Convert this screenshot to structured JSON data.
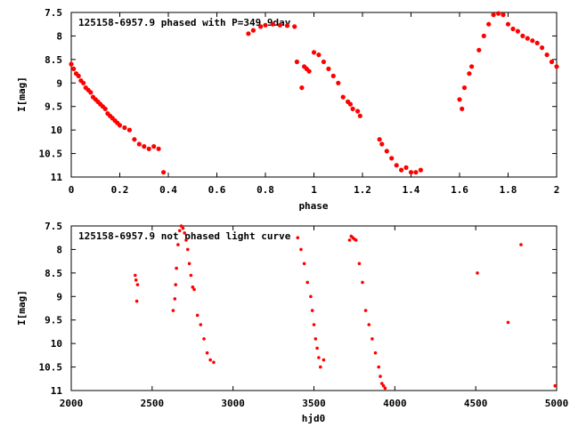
{
  "chart_data": [
    {
      "type": "scatter",
      "title": "125158-6957.9 phased with P=349.9day",
      "xlabel": "phase",
      "ylabel": "I[mag]",
      "xlim": [
        0,
        2
      ],
      "ylim": [
        7.5,
        11
      ],
      "y_inverted": true,
      "xticks": [
        "0",
        "0.2",
        "0.4",
        "0.6",
        "0.8",
        "1",
        "1.2",
        "1.4",
        "1.6",
        "1.8",
        "2"
      ],
      "yticks": [
        "7.5",
        "8",
        "8.5",
        "9",
        "9.5",
        "10",
        "10.5",
        "11"
      ],
      "point_color": "#ff0000",
      "series": [
        {
          "x": [
            0.0,
            0.01,
            0.02,
            0.03,
            0.04,
            0.05,
            0.06,
            0.07,
            0.08,
            0.09,
            0.1,
            0.11,
            0.12,
            0.13,
            0.14,
            0.15,
            0.16,
            0.17,
            0.18,
            0.19,
            0.2,
            0.22,
            0.24,
            0.26,
            0.28,
            0.3,
            0.32,
            0.34,
            0.36,
            0.38,
            0.73,
            0.75,
            0.78,
            0.8,
            0.83,
            0.86,
            0.89,
            0.92,
            0.93,
            0.95,
            0.96,
            0.97,
            0.98,
            1.0,
            1.02,
            1.04,
            1.06,
            1.08,
            1.1,
            1.12,
            1.14,
            1.15,
            1.16,
            1.18,
            1.19,
            1.27,
            1.28,
            1.3,
            1.32,
            1.34,
            1.36,
            1.38,
            1.4,
            1.42,
            1.44,
            1.6,
            1.61,
            1.62,
            1.64,
            1.65,
            1.68,
            1.7,
            1.72,
            1.74,
            1.76,
            1.78,
            1.8,
            1.82,
            1.84,
            1.86,
            1.88,
            1.9,
            1.92,
            1.94,
            1.96,
            1.98,
            2.0
          ],
          "y": [
            8.6,
            8.7,
            8.8,
            8.85,
            8.95,
            9.0,
            9.1,
            9.15,
            9.2,
            9.3,
            9.35,
            9.4,
            9.45,
            9.5,
            9.55,
            9.65,
            9.7,
            9.75,
            9.8,
            9.85,
            9.9,
            9.95,
            10.0,
            10.2,
            10.3,
            10.35,
            10.4,
            10.35,
            10.4,
            10.9,
            7.95,
            7.88,
            7.8,
            7.77,
            7.75,
            7.77,
            7.78,
            7.8,
            8.55,
            9.1,
            8.65,
            8.7,
            8.75,
            8.35,
            8.4,
            8.55,
            8.7,
            8.85,
            9.0,
            9.3,
            9.4,
            9.45,
            9.55,
            9.6,
            9.7,
            10.2,
            10.3,
            10.45,
            10.6,
            10.75,
            10.85,
            10.8,
            10.9,
            10.9,
            10.85,
            9.35,
            9.55,
            9.1,
            8.8,
            8.65,
            8.3,
            8.0,
            7.75,
            7.55,
            7.52,
            7.55,
            7.75,
            7.85,
            7.9,
            8.0,
            8.05,
            8.1,
            8.15,
            8.25,
            8.4,
            8.55,
            8.65
          ]
        }
      ]
    },
    {
      "type": "scatter",
      "title": "125158-6957.9 not phased light curve",
      "xlabel": "hjd0",
      "ylabel": "I[mag]",
      "xlim": [
        2000,
        5000
      ],
      "ylim": [
        7.5,
        11
      ],
      "y_inverted": true,
      "xticks": [
        "2000",
        "2500",
        "3000",
        "3500",
        "4000",
        "4500",
        "5000"
      ],
      "yticks": [
        "7.5",
        "8",
        "8.5",
        "9",
        "9.5",
        "10",
        "10.5",
        "11"
      ],
      "point_color": "#ff0000",
      "series": [
        {
          "x": [
            2395,
            2400,
            2405,
            2410,
            2630,
            2640,
            2645,
            2650,
            2660,
            2670,
            2680,
            2690,
            2700,
            2710,
            2720,
            2730,
            2740,
            2750,
            2760,
            2780,
            2800,
            2820,
            2840,
            2860,
            2880,
            3400,
            3420,
            3440,
            3460,
            3480,
            3490,
            3500,
            3510,
            3520,
            3530,
            3540,
            3560,
            3720,
            3730,
            3740,
            3750,
            3760,
            3780,
            3800,
            3820,
            3840,
            3860,
            3880,
            3900,
            3910,
            3920,
            3930,
            3940,
            4510,
            4700,
            4780,
            4990
          ],
          "y": [
            8.55,
            8.65,
            9.1,
            8.75,
            9.3,
            9.05,
            8.75,
            8.4,
            7.9,
            7.6,
            7.5,
            7.55,
            7.65,
            7.8,
            8.0,
            8.3,
            8.55,
            8.8,
            8.85,
            9.4,
            9.6,
            9.9,
            10.2,
            10.35,
            10.4,
            7.75,
            8.0,
            8.3,
            8.7,
            9.0,
            9.3,
            9.6,
            9.9,
            10.1,
            10.3,
            10.5,
            10.35,
            7.8,
            7.72,
            7.75,
            7.78,
            7.8,
            8.3,
            8.7,
            9.3,
            9.6,
            9.9,
            10.2,
            10.5,
            10.7,
            10.85,
            10.9,
            10.95,
            8.5,
            9.55,
            7.9,
            10.9
          ]
        }
      ]
    }
  ]
}
